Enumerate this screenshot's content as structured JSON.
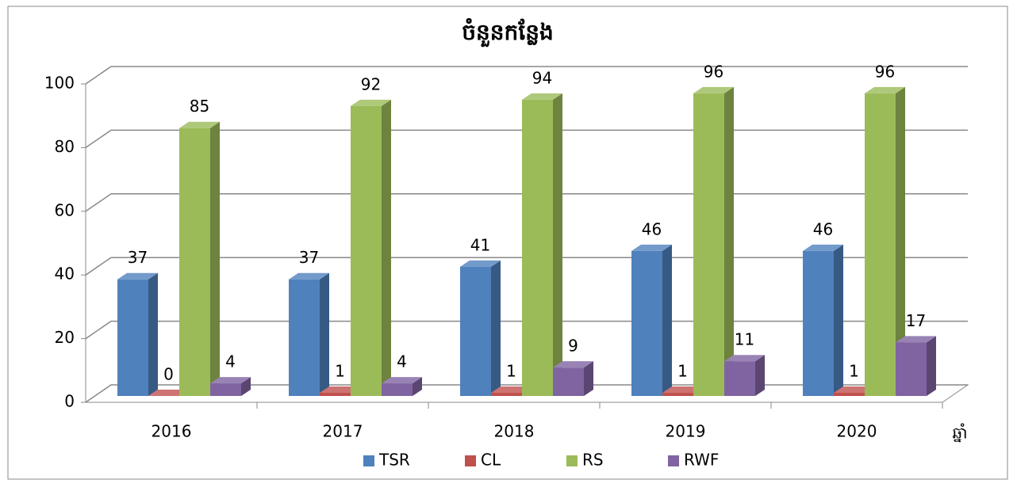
{
  "chart_data": {
    "type": "bar3d",
    "title": "ចំនួនកន្លែង",
    "x_label": "ឆ្នាំ",
    "categories": [
      "2016",
      "2017",
      "2018",
      "2019",
      "2020"
    ],
    "series": [
      {
        "name": "TSR",
        "color": "#4f81bd",
        "values": [
          37,
          37,
          41,
          46,
          46
        ]
      },
      {
        "name": "CL",
        "color": "#c0504d",
        "values": [
          0,
          1,
          1,
          1,
          1
        ]
      },
      {
        "name": "RS",
        "color": "#9bbb59",
        "values": [
          85,
          92,
          94,
          96,
          96
        ]
      },
      {
        "name": "RWF",
        "color": "#8064a2",
        "values": [
          4,
          4,
          9,
          11,
          17
        ]
      }
    ],
    "ylim": [
      0,
      100
    ],
    "yticks": [
      0,
      20,
      40,
      60,
      80,
      100
    ],
    "grid": true,
    "legend": "bottom"
  }
}
